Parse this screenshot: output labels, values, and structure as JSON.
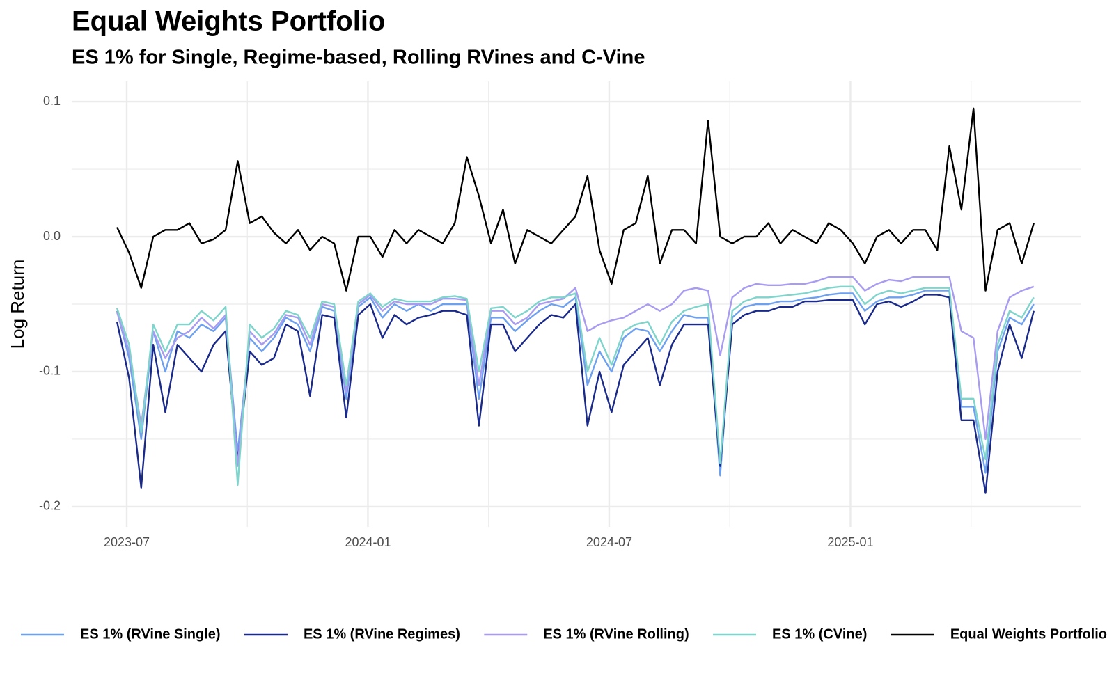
{
  "chart_data": {
    "type": "line",
    "title": "Equal Weights Portfolio",
    "subtitle": "ES 1% for Single, Regime-based, Rolling RVines and C-Vine",
    "y_label": "Log Return",
    "xlim": [
      2023.386,
      2025.477
    ],
    "ylim": [
      -0.215,
      0.115
    ],
    "xticks": [
      {
        "value": 2023.5,
        "label": "2023-07"
      },
      {
        "value": 2024.0,
        "label": "2024-01"
      },
      {
        "value": 2024.5,
        "label": "2024-07"
      },
      {
        "value": 2025.0,
        "label": "2025-01"
      }
    ],
    "xminorticks": [
      2023.75,
      2024.25,
      2024.75,
      2025.25
    ],
    "yticks": [
      -0.2,
      -0.1,
      {
        "value": 0,
        "label": "0.0"
      },
      0.1
    ],
    "yminorticks": [
      -0.15,
      -0.05,
      0.05
    ],
    "grid": true,
    "legend": "bottom",
    "x": [
      2023.48,
      2023.505,
      2023.53,
      2023.555,
      2023.58,
      2023.605,
      2023.63,
      2023.655,
      2023.68,
      2023.705,
      2023.73,
      2023.755,
      2023.78,
      2023.805,
      2023.83,
      2023.855,
      2023.88,
      2023.905,
      2023.93,
      2023.955,
      2023.98,
      2024.005,
      2024.03,
      2024.055,
      2024.08,
      2024.105,
      2024.13,
      2024.155,
      2024.18,
      2024.205,
      2024.23,
      2024.255,
      2024.28,
      2024.305,
      2024.33,
      2024.355,
      2024.38,
      2024.405,
      2024.43,
      2024.455,
      2024.48,
      2024.505,
      2024.53,
      2024.555,
      2024.58,
      2024.605,
      2024.63,
      2024.655,
      2024.68,
      2024.705,
      2024.73,
      2024.755,
      2024.78,
      2024.805,
      2024.83,
      2024.855,
      2024.88,
      2024.905,
      2024.93,
      2024.955,
      2024.98,
      2025.005,
      2025.03,
      2025.055,
      2025.08,
      2025.105,
      2025.13,
      2025.155,
      2025.18,
      2025.205,
      2025.23,
      2025.255,
      2025.28,
      2025.305,
      2025.33,
      2025.355,
      2025.38
    ],
    "series": [
      {
        "name": "ES 1% (RVine Single)",
        "color": "#6ea0f0",
        "values": [
          -0.055,
          -0.09,
          -0.15,
          -0.07,
          -0.1,
          -0.07,
          -0.075,
          -0.065,
          -0.07,
          -0.06,
          -0.16,
          -0.075,
          -0.085,
          -0.075,
          -0.06,
          -0.065,
          -0.085,
          -0.052,
          -0.055,
          -0.12,
          -0.052,
          -0.045,
          -0.06,
          -0.05,
          -0.055,
          -0.05,
          -0.055,
          -0.05,
          -0.05,
          -0.05,
          -0.12,
          -0.06,
          -0.06,
          -0.07,
          -0.062,
          -0.055,
          -0.05,
          -0.052,
          -0.045,
          -0.11,
          -0.085,
          -0.1,
          -0.075,
          -0.068,
          -0.07,
          -0.085,
          -0.07,
          -0.058,
          -0.06,
          -0.06,
          -0.177,
          -0.06,
          -0.052,
          -0.05,
          -0.05,
          -0.048,
          -0.048,
          -0.046,
          -0.045,
          -0.043,
          -0.042,
          -0.042,
          -0.055,
          -0.048,
          -0.045,
          -0.045,
          -0.043,
          -0.04,
          -0.04,
          -0.04,
          -0.126,
          -0.126,
          -0.175,
          -0.085,
          -0.06,
          -0.065,
          -0.05
        ]
      },
      {
        "name": "ES 1% (RVine Regimes)",
        "color": "#1a2a8a",
        "values": [
          -0.063,
          -0.105,
          -0.186,
          -0.08,
          -0.13,
          -0.08,
          -0.09,
          -0.1,
          -0.08,
          -0.07,
          -0.167,
          -0.085,
          -0.095,
          -0.09,
          -0.065,
          -0.07,
          -0.118,
          -0.058,
          -0.06,
          -0.134,
          -0.058,
          -0.05,
          -0.075,
          -0.058,
          -0.065,
          -0.06,
          -0.058,
          -0.055,
          -0.055,
          -0.058,
          -0.14,
          -0.065,
          -0.065,
          -0.085,
          -0.075,
          -0.065,
          -0.058,
          -0.06,
          -0.05,
          -0.14,
          -0.1,
          -0.13,
          -0.095,
          -0.085,
          -0.075,
          -0.11,
          -0.08,
          -0.065,
          -0.065,
          -0.065,
          -0.17,
          -0.065,
          -0.058,
          -0.055,
          -0.055,
          -0.052,
          -0.052,
          -0.048,
          -0.048,
          -0.047,
          -0.047,
          -0.047,
          -0.065,
          -0.05,
          -0.048,
          -0.052,
          -0.048,
          -0.043,
          -0.043,
          -0.045,
          -0.136,
          -0.136,
          -0.19,
          -0.1,
          -0.065,
          -0.09,
          -0.055
        ]
      },
      {
        "name": "ES 1% (RVine Rolling)",
        "color": "#a89cf0",
        "values": [
          -0.056,
          -0.085,
          -0.14,
          -0.07,
          -0.09,
          -0.075,
          -0.07,
          -0.06,
          -0.068,
          -0.058,
          -0.17,
          -0.07,
          -0.08,
          -0.072,
          -0.058,
          -0.06,
          -0.08,
          -0.05,
          -0.052,
          -0.115,
          -0.05,
          -0.043,
          -0.055,
          -0.048,
          -0.05,
          -0.05,
          -0.05,
          -0.046,
          -0.046,
          -0.047,
          -0.11,
          -0.055,
          -0.055,
          -0.065,
          -0.06,
          -0.05,
          -0.048,
          -0.046,
          -0.038,
          -0.07,
          -0.065,
          -0.062,
          -0.06,
          -0.055,
          -0.05,
          -0.055,
          -0.05,
          -0.04,
          -0.038,
          -0.04,
          -0.088,
          -0.045,
          -0.038,
          -0.035,
          -0.036,
          -0.036,
          -0.035,
          -0.035,
          -0.033,
          -0.03,
          -0.03,
          -0.03,
          -0.04,
          -0.035,
          -0.032,
          -0.033,
          -0.03,
          -0.03,
          -0.03,
          -0.03,
          -0.07,
          -0.075,
          -0.15,
          -0.07,
          -0.045,
          -0.04,
          -0.037
        ]
      },
      {
        "name": "ES 1% (CVine)",
        "color": "#7fd4cc",
        "values": [
          -0.053,
          -0.08,
          -0.145,
          -0.065,
          -0.085,
          -0.065,
          -0.065,
          -0.055,
          -0.062,
          -0.052,
          -0.184,
          -0.065,
          -0.075,
          -0.068,
          -0.055,
          -0.058,
          -0.075,
          -0.048,
          -0.05,
          -0.11,
          -0.048,
          -0.042,
          -0.052,
          -0.046,
          -0.048,
          -0.048,
          -0.048,
          -0.045,
          -0.044,
          -0.046,
          -0.1,
          -0.053,
          -0.052,
          -0.06,
          -0.055,
          -0.048,
          -0.045,
          -0.045,
          -0.042,
          -0.1,
          -0.075,
          -0.095,
          -0.07,
          -0.065,
          -0.063,
          -0.08,
          -0.063,
          -0.055,
          -0.052,
          -0.05,
          -0.168,
          -0.055,
          -0.048,
          -0.045,
          -0.045,
          -0.044,
          -0.043,
          -0.042,
          -0.04,
          -0.038,
          -0.037,
          -0.037,
          -0.05,
          -0.043,
          -0.04,
          -0.042,
          -0.04,
          -0.038,
          -0.038,
          -0.038,
          -0.12,
          -0.12,
          -0.165,
          -0.08,
          -0.055,
          -0.06,
          -0.045
        ]
      },
      {
        "name": "Equal Weights Portfolio",
        "color": "#000000",
        "values": [
          0.007,
          -0.012,
          -0.038,
          0.0,
          0.005,
          0.005,
          0.01,
          -0.005,
          -0.002,
          0.005,
          0.056,
          0.01,
          0.015,
          0.003,
          -0.005,
          0.005,
          -0.01,
          0.0,
          -0.005,
          -0.04,
          0.0,
          0.0,
          -0.015,
          0.005,
          -0.005,
          0.005,
          0.0,
          -0.005,
          0.01,
          0.059,
          0.03,
          -0.005,
          0.02,
          -0.02,
          0.005,
          0.0,
          -0.005,
          0.005,
          0.015,
          0.045,
          -0.01,
          -0.035,
          0.005,
          0.01,
          0.045,
          -0.02,
          0.005,
          0.005,
          -0.005,
          0.086,
          0.0,
          -0.005,
          0.0,
          0.0,
          0.01,
          -0.005,
          0.005,
          0.0,
          -0.005,
          0.01,
          0.005,
          -0.005,
          -0.02,
          0.0,
          0.005,
          -0.005,
          0.005,
          0.005,
          -0.01,
          0.067,
          0.02,
          0.095,
          -0.04,
          0.005,
          0.01,
          -0.02,
          0.01
        ]
      }
    ]
  }
}
